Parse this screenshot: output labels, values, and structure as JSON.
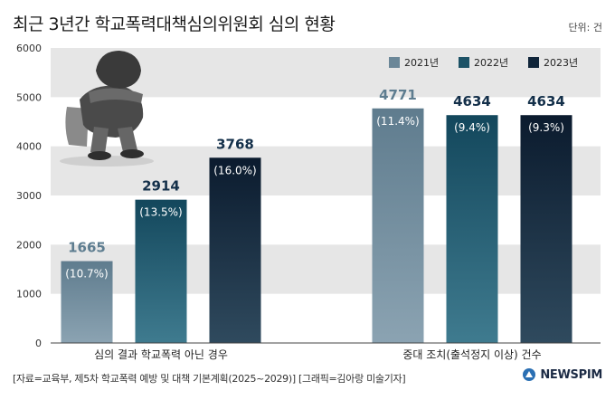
{
  "title": "최근 3년간 학교폭력대책심의위원회 심의 현황",
  "unit_label": "단위: 건",
  "source": "[자료=교육부, 제5차 학교폭력 예방 및 대책 기본계획(2025~2029)] [그래픽=김아랑 미술기자]",
  "brand": "NEWSPIM",
  "colors": {
    "y2021": "#6b8798",
    "y2022": "#1c5266",
    "y2023": "#10253a",
    "band": "#e6e6e6",
    "value_2021": "#5e7d90",
    "value_other": "#14304a"
  },
  "chart_data": {
    "type": "bar",
    "categories": [
      "심의 결과 학교폭력 아닌 경우",
      "중대 조치(출석정지 이상) 건수"
    ],
    "series": [
      {
        "name": "2021년",
        "values": [
          1665,
          4771
        ],
        "labels": [
          "1665",
          "4771"
        ],
        "pct": [
          "(10.7%)",
          "(11.4%)"
        ]
      },
      {
        "name": "2022년",
        "values": [
          2914,
          4634
        ],
        "labels": [
          "2914",
          "4634"
        ],
        "pct": [
          "(13.5%)",
          "(9.4%)"
        ]
      },
      {
        "name": "2023년",
        "values": [
          3768,
          4634
        ],
        "labels": [
          "3768",
          "4634"
        ],
        "pct": [
          "(16.0%)",
          "(9.3%)"
        ]
      }
    ],
    "ylim": [
      0,
      6000
    ],
    "yticks": [
      "0",
      "1000",
      "2000",
      "3000",
      "4000",
      "5000",
      "6000"
    ],
    "legend_position": "top-right",
    "grid": "alternating-bands"
  }
}
